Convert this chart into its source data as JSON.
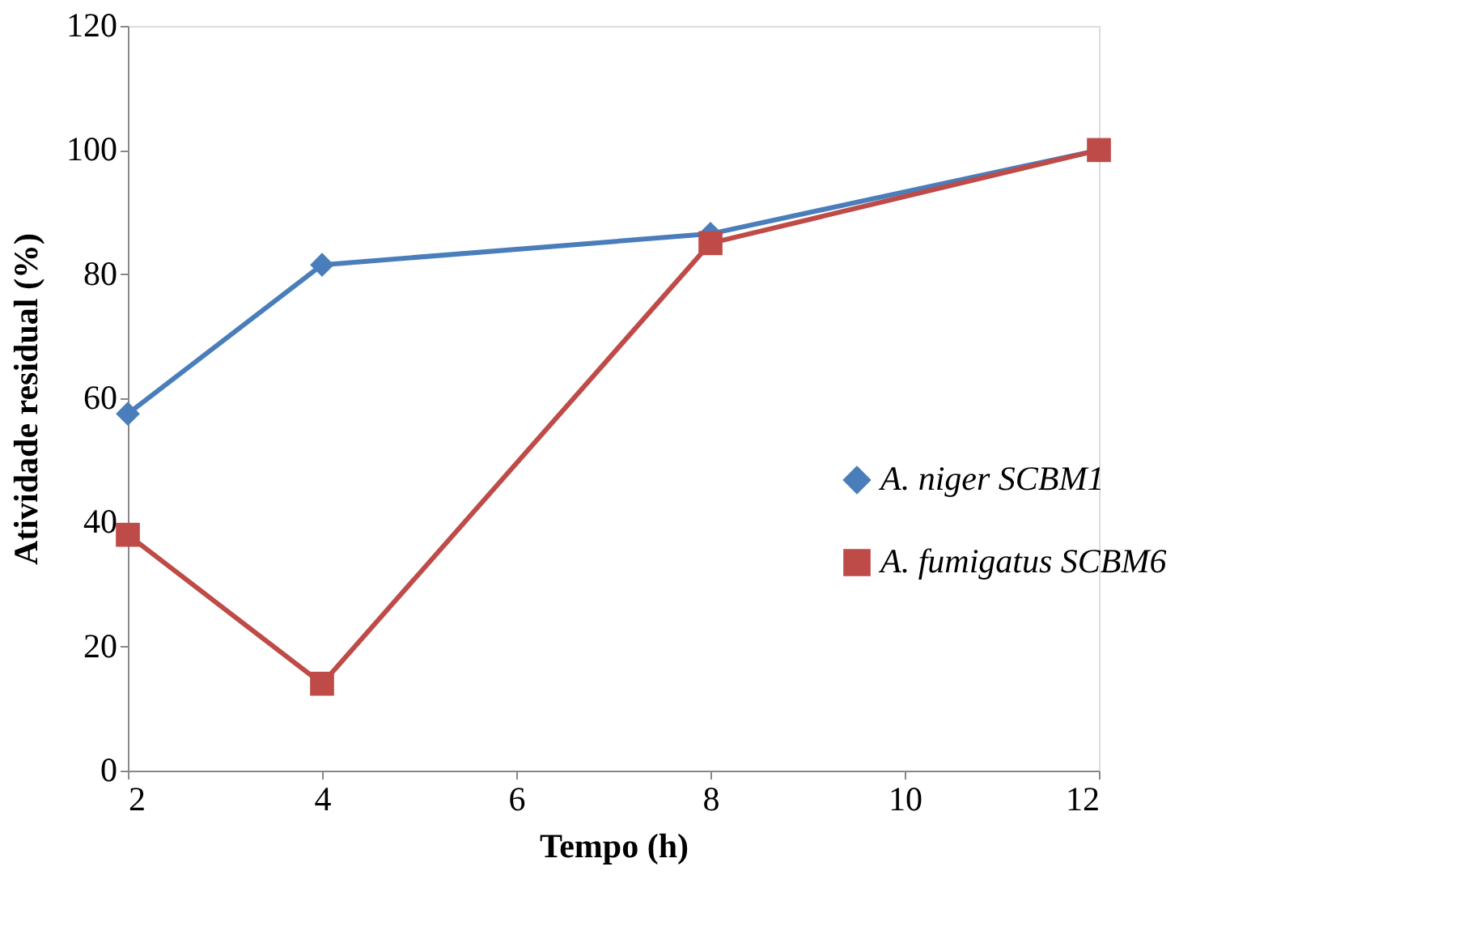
{
  "chart_data": {
    "type": "line",
    "xlabel": "Tempo (h)",
    "ylabel": "Atividade residual (%)",
    "x": [
      2,
      4,
      8,
      12
    ],
    "series": [
      {
        "name": "A. niger SCBM1",
        "color": "#4a7ebb",
        "marker": "diamond",
        "values": [
          57.5,
          81.5,
          86.5,
          100
        ]
      },
      {
        "name": "A. fumigatus SCBM6",
        "color": "#be4b48",
        "marker": "square",
        "values": [
          38,
          14,
          85,
          100
        ]
      }
    ],
    "xlim": [
      2,
      12
    ],
    "xticks": [
      2,
      4,
      6,
      8,
      10,
      12
    ],
    "ylim": [
      0,
      120
    ],
    "yticks": [
      0,
      20,
      40,
      60,
      80,
      100,
      120
    ],
    "grid": false,
    "legend": "right",
    "line_style": "solid"
  }
}
